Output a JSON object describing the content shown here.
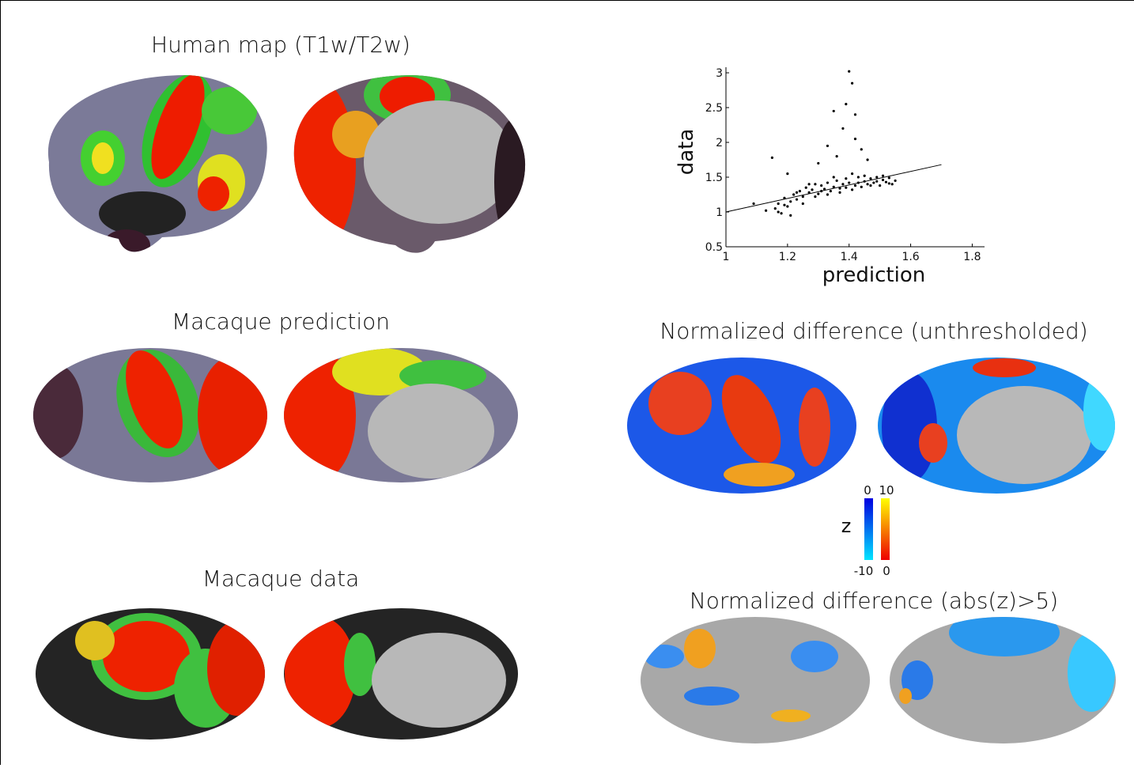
{
  "human_title": "Human map (T1w/T2w)",
  "prediction_title": "Macaque prediction",
  "data_title": "Macaque data",
  "diff_title": "Normalized difference (unthresholded)",
  "diff_thresh_title": "Normalized difference (abs(z)>5)",
  "colorbar": {
    "label": "z",
    "blue_top": 0,
    "blue_bottom": -10,
    "red_top": 10,
    "red_bottom": 0
  },
  "chart_data": {
    "type": "scatter",
    "xlabel": "prediction",
    "ylabel": "data",
    "color": "#000000",
    "xlim": [
      1,
      1.84
    ],
    "ylim": [
      0.5,
      3.08
    ],
    "xticks": [
      1,
      1.2,
      1.4,
      1.6,
      1.8
    ],
    "yticks": [
      0.5,
      1,
      1.5,
      2,
      2.5,
      3
    ],
    "x": [
      1.16,
      1.17,
      1.18,
      1.19,
      1.2,
      1.21,
      1.22,
      1.23,
      1.24,
      1.25,
      1.26,
      1.27,
      1.28,
      1.29,
      1.3,
      1.31,
      1.32,
      1.33,
      1.34,
      1.35,
      1.36,
      1.37,
      1.38,
      1.39,
      1.4,
      1.41,
      1.42,
      1.43,
      1.44,
      1.45,
      1.46,
      1.47,
      1.48,
      1.49,
      1.5,
      1.51,
      1.52,
      1.53,
      1.54,
      1.55,
      1.17,
      1.19,
      1.21,
      1.23,
      1.25,
      1.27,
      1.29,
      1.31,
      1.33,
      1.35,
      1.37,
      1.39,
      1.41,
      1.43,
      1.45,
      1.47,
      1.49,
      1.51,
      1.53,
      1.13,
      1.4,
      1.41,
      1.39,
      1.42,
      1.35,
      1.38,
      1.42,
      1.44,
      1.33,
      1.36,
      1.15,
      1.3,
      1.46,
      1.2,
      1.09
    ],
    "y": [
      1.05,
      1.12,
      0.98,
      1.2,
      1.08,
      1.15,
      1.25,
      1.18,
      1.3,
      1.22,
      1.35,
      1.28,
      1.32,
      1.4,
      1.26,
      1.38,
      1.33,
      1.42,
      1.3,
      1.36,
      1.45,
      1.34,
      1.4,
      1.48,
      1.42,
      1.55,
      1.38,
      1.5,
      1.36,
      1.44,
      1.4,
      1.48,
      1.42,
      1.5,
      1.38,
      1.46,
      1.43,
      1.49,
      1.4,
      1.45,
      1.0,
      1.1,
      0.95,
      1.28,
      1.12,
      1.4,
      1.22,
      1.3,
      1.25,
      1.5,
      1.28,
      1.35,
      1.32,
      1.42,
      1.52,
      1.38,
      1.44,
      1.52,
      1.41,
      1.02,
      3.02,
      2.85,
      2.55,
      2.4,
      2.45,
      2.2,
      2.05,
      1.9,
      1.95,
      1.8,
      1.78,
      1.7,
      1.75,
      1.55,
      1.12
    ],
    "fit_line": {
      "x": [
        1,
        1.7
      ],
      "y": [
        1,
        1.68
      ]
    }
  }
}
